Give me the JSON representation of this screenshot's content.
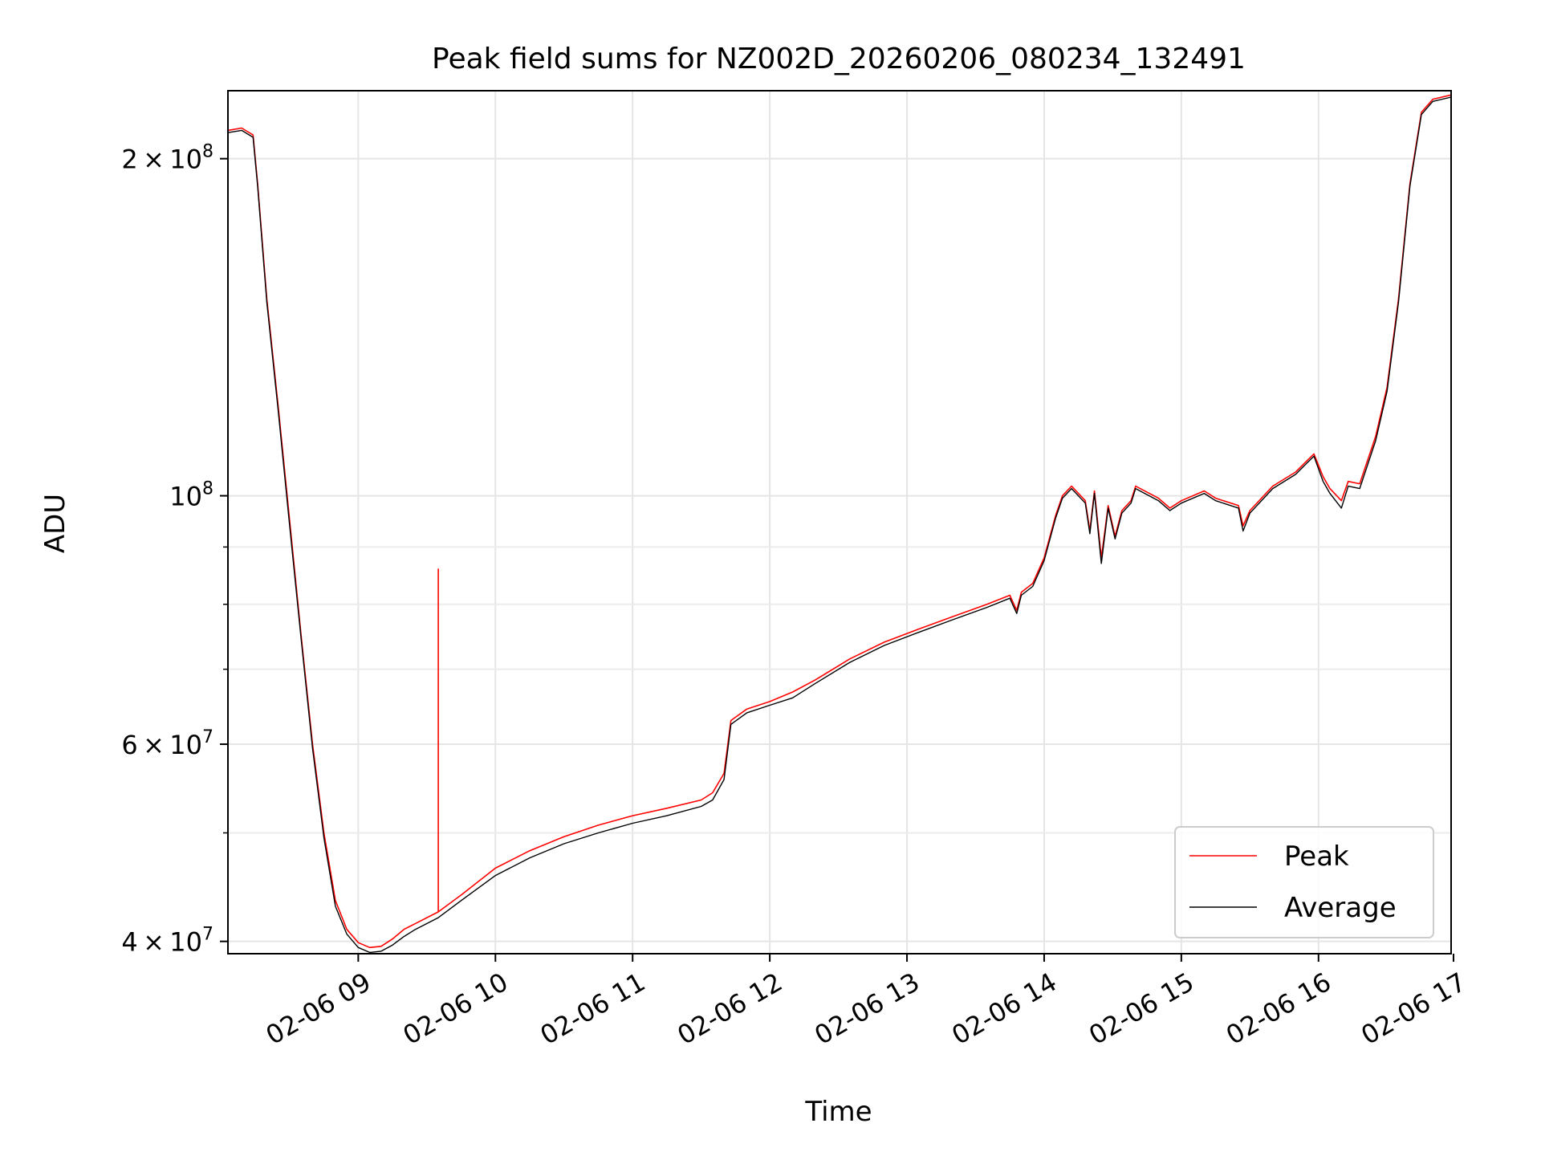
{
  "chart_data": {
    "type": "line",
    "title": "Peak field sums for NZ002D_20260206_080234_132491",
    "xlabel": "Time",
    "ylabel": "ADU",
    "yscale": "log",
    "grid": true,
    "legend_position": "lower-right",
    "xlim": [
      "2026-02-06 08:03",
      "2026-02-06 16:58"
    ],
    "ylim": [
      39000000,
      230000000
    ],
    "x_ticks": [
      {
        "value": "2026-02-06 09:00",
        "label": "02-06 09"
      },
      {
        "value": "2026-02-06 10:00",
        "label": "02-06 10"
      },
      {
        "value": "2026-02-06 11:00",
        "label": "02-06 11"
      },
      {
        "value": "2026-02-06 12:00",
        "label": "02-06 12"
      },
      {
        "value": "2026-02-06 13:00",
        "label": "02-06 13"
      },
      {
        "value": "2026-02-06 14:00",
        "label": "02-06 14"
      },
      {
        "value": "2026-02-06 15:00",
        "label": "02-06 15"
      },
      {
        "value": "2026-02-06 16:00",
        "label": "02-06 16"
      },
      {
        "value": "2026-02-06 17:00",
        "label": "02-06 17"
      }
    ],
    "y_ticks_major": [
      {
        "value": 40000000,
        "base": "4",
        "exp": "7"
      },
      {
        "value": 60000000,
        "base": "6",
        "exp": "7"
      },
      {
        "value": 100000000,
        "base": "",
        "exp": "8"
      },
      {
        "value": 200000000,
        "base": "2",
        "exp": "8"
      }
    ],
    "y_ticks_minor": [
      50000000,
      70000000,
      80000000,
      90000000
    ],
    "colors": {
      "peak": "#ff0000",
      "average": "#000000"
    },
    "series": [
      {
        "name": "Peak",
        "color": "#ff0000",
        "points": [
          [
            "2026-02-06 08:03",
            212000000
          ],
          [
            "2026-02-06 08:09",
            213000000
          ],
          [
            "2026-02-06 08:14",
            210000000
          ],
          [
            "2026-02-06 08:16",
            190000000
          ],
          [
            "2026-02-06 08:20",
            150000000
          ],
          [
            "2026-02-06 08:25",
            120000000
          ],
          [
            "2026-02-06 08:30",
            95000000
          ],
          [
            "2026-02-06 08:35",
            75000000
          ],
          [
            "2026-02-06 08:40",
            60000000
          ],
          [
            "2026-02-06 08:45",
            50000000
          ],
          [
            "2026-02-06 08:50",
            43500000
          ],
          [
            "2026-02-06 08:55",
            41000000
          ],
          [
            "2026-02-06 09:00",
            39900000
          ],
          [
            "2026-02-06 09:05",
            39500000
          ],
          [
            "2026-02-06 09:10",
            39600000
          ],
          [
            "2026-02-06 09:15",
            40200000
          ],
          [
            "2026-02-06 09:20",
            41000000
          ],
          [
            "2026-02-06 09:25",
            41500000
          ],
          [
            "2026-02-06 09:35",
            42500000
          ],
          [
            "2026-02-06 09:35",
            86000000
          ],
          [
            "2026-02-06 09:35",
            42500000
          ],
          [
            "2026-02-06 09:45",
            44000000
          ],
          [
            "2026-02-06 10:00",
            46500000
          ],
          [
            "2026-02-06 10:15",
            48200000
          ],
          [
            "2026-02-06 10:30",
            49600000
          ],
          [
            "2026-02-06 10:45",
            50800000
          ],
          [
            "2026-02-06 11:00",
            51800000
          ],
          [
            "2026-02-06 11:15",
            52600000
          ],
          [
            "2026-02-06 11:30",
            53500000
          ],
          [
            "2026-02-06 11:35",
            54300000
          ],
          [
            "2026-02-06 11:40",
            56500000
          ],
          [
            "2026-02-06 11:43",
            63000000
          ],
          [
            "2026-02-06 11:50",
            64500000
          ],
          [
            "2026-02-06 12:00",
            65500000
          ],
          [
            "2026-02-06 12:10",
            66800000
          ],
          [
            "2026-02-06 12:20",
            68500000
          ],
          [
            "2026-02-06 12:35",
            71500000
          ],
          [
            "2026-02-06 12:50",
            74000000
          ],
          [
            "2026-02-06 13:05",
            76000000
          ],
          [
            "2026-02-06 13:20",
            78000000
          ],
          [
            "2026-02-06 13:35",
            80000000
          ],
          [
            "2026-02-06 13:45",
            81500000
          ],
          [
            "2026-02-06 13:48",
            79000000
          ],
          [
            "2026-02-06 13:50",
            82000000
          ],
          [
            "2026-02-06 13:55",
            83500000
          ],
          [
            "2026-02-06 14:00",
            88000000
          ],
          [
            "2026-02-06 14:05",
            96000000
          ],
          [
            "2026-02-06 14:08",
            100000000
          ],
          [
            "2026-02-06 14:12",
            102000000
          ],
          [
            "2026-02-06 14:18",
            99000000
          ],
          [
            "2026-02-06 14:20",
            93000000
          ],
          [
            "2026-02-06 14:22",
            101000000
          ],
          [
            "2026-02-06 14:25",
            88000000
          ],
          [
            "2026-02-06 14:28",
            98000000
          ],
          [
            "2026-02-06 14:31",
            92000000
          ],
          [
            "2026-02-06 14:34",
            97000000
          ],
          [
            "2026-02-06 14:38",
            99000000
          ],
          [
            "2026-02-06 14:40",
            102000000
          ],
          [
            "2026-02-06 14:50",
            99500000
          ],
          [
            "2026-02-06 14:55",
            97500000
          ],
          [
            "2026-02-06 15:00",
            99000000
          ],
          [
            "2026-02-06 15:10",
            101000000
          ],
          [
            "2026-02-06 15:15",
            99500000
          ],
          [
            "2026-02-06 15:25",
            98000000
          ],
          [
            "2026-02-06 15:27",
            94000000
          ],
          [
            "2026-02-06 15:30",
            97000000
          ],
          [
            "2026-02-06 15:40",
            102000000
          ],
          [
            "2026-02-06 15:50",
            105000000
          ],
          [
            "2026-02-06 15:55",
            107500000
          ],
          [
            "2026-02-06 15:58",
            109000000
          ],
          [
            "2026-02-06 16:02",
            104000000
          ],
          [
            "2026-02-06 16:05",
            101500000
          ],
          [
            "2026-02-06 16:10",
            99000000
          ],
          [
            "2026-02-06 16:13",
            103000000
          ],
          [
            "2026-02-06 16:18",
            102500000
          ],
          [
            "2026-02-06 16:25",
            113000000
          ],
          [
            "2026-02-06 16:30",
            125000000
          ],
          [
            "2026-02-06 16:35",
            150000000
          ],
          [
            "2026-02-06 16:40",
            190000000
          ],
          [
            "2026-02-06 16:45",
            220000000
          ],
          [
            "2026-02-06 16:50",
            226000000
          ],
          [
            "2026-02-06 16:58",
            228000000
          ]
        ]
      },
      {
        "name": "Average",
        "color": "#000000",
        "points": [
          [
            "2026-02-06 08:03",
            211000000
          ],
          [
            "2026-02-06 08:09",
            212000000
          ],
          [
            "2026-02-06 08:14",
            209000000
          ],
          [
            "2026-02-06 08:16",
            189000000
          ],
          [
            "2026-02-06 08:20",
            149000000
          ],
          [
            "2026-02-06 08:25",
            119000000
          ],
          [
            "2026-02-06 08:30",
            94000000
          ],
          [
            "2026-02-06 08:35",
            74500000
          ],
          [
            "2026-02-06 08:40",
            59500000
          ],
          [
            "2026-02-06 08:45",
            49500000
          ],
          [
            "2026-02-06 08:50",
            43000000
          ],
          [
            "2026-02-06 08:55",
            40600000
          ],
          [
            "2026-02-06 09:00",
            39500000
          ],
          [
            "2026-02-06 09:05",
            39100000
          ],
          [
            "2026-02-06 09:10",
            39200000
          ],
          [
            "2026-02-06 09:15",
            39700000
          ],
          [
            "2026-02-06 09:20",
            40400000
          ],
          [
            "2026-02-06 09:25",
            41000000
          ],
          [
            "2026-02-06 09:35",
            42000000
          ],
          [
            "2026-02-06 09:45",
            43500000
          ],
          [
            "2026-02-06 10:00",
            45800000
          ],
          [
            "2026-02-06 10:15",
            47500000
          ],
          [
            "2026-02-06 10:30",
            48900000
          ],
          [
            "2026-02-06 10:45",
            50000000
          ],
          [
            "2026-02-06 11:00",
            51000000
          ],
          [
            "2026-02-06 11:15",
            51800000
          ],
          [
            "2026-02-06 11:30",
            52800000
          ],
          [
            "2026-02-06 11:35",
            53500000
          ],
          [
            "2026-02-06 11:40",
            55800000
          ],
          [
            "2026-02-06 11:43",
            62500000
          ],
          [
            "2026-02-06 11:50",
            64000000
          ],
          [
            "2026-02-06 12:00",
            65000000
          ],
          [
            "2026-02-06 12:10",
            66000000
          ],
          [
            "2026-02-06 12:20",
            68000000
          ],
          [
            "2026-02-06 12:35",
            71000000
          ],
          [
            "2026-02-06 12:50",
            73500000
          ],
          [
            "2026-02-06 13:05",
            75500000
          ],
          [
            "2026-02-06 13:20",
            77500000
          ],
          [
            "2026-02-06 13:35",
            79500000
          ],
          [
            "2026-02-06 13:45",
            81000000
          ],
          [
            "2026-02-06 13:48",
            78500000
          ],
          [
            "2026-02-06 13:50",
            81500000
          ],
          [
            "2026-02-06 13:55",
            83000000
          ],
          [
            "2026-02-06 14:00",
            87500000
          ],
          [
            "2026-02-06 14:05",
            95500000
          ],
          [
            "2026-02-06 14:08",
            99500000
          ],
          [
            "2026-02-06 14:12",
            101500000
          ],
          [
            "2026-02-06 14:18",
            98500000
          ],
          [
            "2026-02-06 14:20",
            92500000
          ],
          [
            "2026-02-06 14:22",
            100500000
          ],
          [
            "2026-02-06 14:25",
            87000000
          ],
          [
            "2026-02-06 14:28",
            97500000
          ],
          [
            "2026-02-06 14:31",
            91500000
          ],
          [
            "2026-02-06 14:34",
            96500000
          ],
          [
            "2026-02-06 14:38",
            98500000
          ],
          [
            "2026-02-06 14:40",
            101500000
          ],
          [
            "2026-02-06 14:50",
            99000000
          ],
          [
            "2026-02-06 14:55",
            97000000
          ],
          [
            "2026-02-06 15:00",
            98500000
          ],
          [
            "2026-02-06 15:10",
            100500000
          ],
          [
            "2026-02-06 15:15",
            99000000
          ],
          [
            "2026-02-06 15:25",
            97500000
          ],
          [
            "2026-02-06 15:27",
            93000000
          ],
          [
            "2026-02-06 15:30",
            96500000
          ],
          [
            "2026-02-06 15:40",
            101500000
          ],
          [
            "2026-02-06 15:50",
            104500000
          ],
          [
            "2026-02-06 15:55",
            107000000
          ],
          [
            "2026-02-06 15:58",
            108500000
          ],
          [
            "2026-02-06 16:02",
            103000000
          ],
          [
            "2026-02-06 16:05",
            100500000
          ],
          [
            "2026-02-06 16:10",
            97500000
          ],
          [
            "2026-02-06 16:13",
            102000000
          ],
          [
            "2026-02-06 16:18",
            101500000
          ],
          [
            "2026-02-06 16:25",
            112000000
          ],
          [
            "2026-02-06 16:30",
            124000000
          ],
          [
            "2026-02-06 16:35",
            149000000
          ],
          [
            "2026-02-06 16:40",
            189000000
          ],
          [
            "2026-02-06 16:45",
            219000000
          ],
          [
            "2026-02-06 16:50",
            225000000
          ],
          [
            "2026-02-06 16:58",
            227000000
          ]
        ]
      }
    ]
  }
}
